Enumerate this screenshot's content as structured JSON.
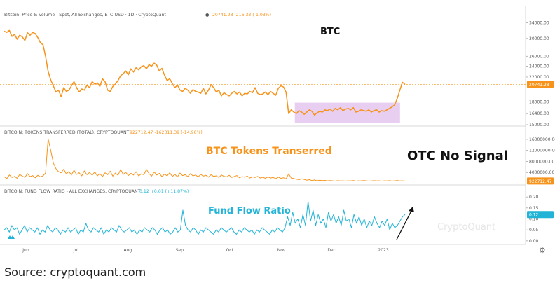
{
  "colors": {
    "btc": "#f7931a",
    "flow": "#22b4d6",
    "box": "#e4c5ee",
    "header_value": "#f7931a",
    "badge_text": "#ffffff"
  },
  "chart_data": [
    {
      "type": "line",
      "header": "Bitcoin: Price & Volume - Spot, All Exchanges, BTC-USD · 1D · CryptoQuant",
      "header_values": "20741.28 -216.33 (-1.03%)",
      "annotation": "BTC",
      "last_value": "20741.28",
      "y_ticks": [
        "34000.00",
        "30000.00",
        "26000.00",
        "24000.00",
        "22000.00",
        "18000.00",
        "16400.00",
        "15000.00"
      ],
      "y_scale": "log",
      "ylim": [
        15000,
        34500
      ],
      "highlight_box": {
        "x_start": "2022-11-09",
        "x_end": "2023-01-11",
        "y_range": [
          15200,
          17900
        ]
      },
      "series": [
        {
          "values": [
            31800,
            31500,
            32000,
            30500,
            31000,
            29800,
            30800,
            30400,
            29500,
            31400,
            30800,
            31500,
            31200,
            30200,
            29000,
            28500,
            26000,
            23000,
            21500,
            20500,
            19500,
            19800,
            18800,
            20200,
            19600,
            19800,
            20500,
            21200,
            20200,
            19500,
            20000,
            19800,
            20600,
            20200,
            21200,
            20800,
            21000,
            20400,
            21700,
            21200,
            19800,
            19600,
            20400,
            20800,
            21400,
            22200,
            22600,
            23100,
            22400,
            23500,
            22900,
            23700,
            23300,
            23900,
            24100,
            23500,
            24300,
            24000,
            24600,
            24200,
            23100,
            23600,
            22300,
            21400,
            21700,
            20900,
            20200,
            20600,
            19800,
            19600,
            20100,
            19800,
            19300,
            19900,
            19600,
            19500,
            19300,
            20100,
            19200,
            19800,
            20700,
            20200,
            19500,
            19800,
            18900,
            19400,
            19100,
            18900,
            19300,
            19600,
            19200,
            19500,
            18900,
            19300,
            19200,
            19600,
            19400,
            20200,
            19300,
            19100,
            19200,
            19500,
            19100,
            19600,
            19300,
            19000,
            20100,
            20500,
            20300,
            19500,
            16400,
            16900,
            16600,
            16400,
            16800,
            16600,
            16300,
            16600,
            16900,
            16700,
            16200,
            16500,
            16700,
            16600,
            16900,
            16800,
            17000,
            16700,
            17100,
            16900,
            17200,
            16800,
            17000,
            17100,
            16900,
            17200,
            16600,
            16700,
            16900,
            16800,
            16700,
            16900,
            16600,
            16800,
            16900,
            16600,
            16800,
            16700,
            16900,
            17100,
            17300,
            17600,
            18500,
            19800,
            21100,
            20741
          ]
        }
      ]
    },
    {
      "type": "line",
      "header": "BITCOIN: TOKENS TRANSFERRED (TOTAL), CRYPTOQUANT",
      "header_values": "922712.47 -162311.39 (-14.96%)",
      "annotation": "BTC Tokens Transerred",
      "last_value": "922712.47",
      "y_ticks": [
        "16000000.00",
        "12000000.00",
        "8000000.00",
        "4000000.00"
      ],
      "ylim": [
        0,
        17000000
      ],
      "series": [
        {
          "values": [
            2500000,
            1800000,
            3100000,
            2200000,
            2600000,
            1900000,
            3300000,
            2700000,
            2200000,
            3600000,
            2500000,
            2900000,
            2100000,
            3000000,
            2400000,
            2800000,
            3800000,
            16200000,
            12000000,
            7500000,
            5400000,
            4300000,
            3900000,
            5200000,
            3500000,
            4400000,
            3100000,
            4800000,
            3300000,
            3900000,
            2800000,
            4600000,
            3200000,
            4000000,
            3000000,
            4200000,
            2800000,
            3600000,
            2500000,
            3900000,
            3200000,
            4500000,
            2700000,
            3800000,
            3000000,
            5100000,
            3300000,
            4100000,
            2900000,
            3700000,
            3100000,
            4300000,
            2800000,
            3500000,
            3200000,
            5100000,
            3600000,
            2700000,
            4200000,
            3100000,
            3700000,
            2500000,
            3400000,
            2800000,
            3900000,
            2600000,
            3300000,
            2400000,
            3800000,
            2900000,
            3200000,
            2500000,
            3600000,
            2800000,
            3100000,
            2400000,
            3300000,
            2700000,
            3000000,
            2300000,
            3200000,
            2600000,
            2800000,
            2200000,
            3100000,
            2600000,
            2400000,
            3000000,
            2200000,
            2600000,
            2900000,
            2100000,
            2500000,
            2300000,
            2700000,
            2000000,
            2400000,
            2200000,
            2600000,
            2000000,
            2300000,
            1900000,
            2400000,
            2000000,
            2200000,
            1800000,
            2300000,
            1900000,
            2100000,
            1700000,
            3500000,
            2000000,
            1800000,
            1600000,
            1400000,
            1700000,
            1500000,
            1200000,
            1400000,
            1100000,
            1300000,
            1000000,
            1200000,
            1050000,
            1150000,
            950000,
            1100000,
            1000000,
            900000,
            1050000,
            950000,
            1000000,
            900000,
            1000000,
            950000,
            1100000,
            900000,
            1000000,
            950000,
            1100000,
            1000000,
            900000,
            950000,
            1050000,
            950000,
            1000000,
            900000,
            1000000,
            950000,
            1050000,
            900000,
            1000000,
            1100000,
            950000,
            1000000,
            922712
          ]
        }
      ]
    },
    {
      "type": "line",
      "header": "BITCOIN: FUND FLOW RATIO - ALL EXCHANGES, CRYPTOQUANT",
      "header_values": "0.12 +0.01 (+11.87%)",
      "annotation": "Fund Flow Ratio",
      "last_value": "0.12",
      "y_ticks": [
        "0.20",
        "0.15",
        "0.10",
        "0.05",
        "0.00"
      ],
      "ylim": [
        -0.01,
        0.21
      ],
      "series": [
        {
          "values": [
            0.05,
            0.06,
            0.04,
            0.07,
            0.05,
            0.06,
            0.03,
            0.05,
            0.07,
            0.04,
            0.06,
            0.05,
            0.04,
            0.06,
            0.03,
            0.05,
            0.04,
            0.07,
            0.05,
            0.04,
            0.06,
            0.05,
            0.03,
            0.05,
            0.04,
            0.06,
            0.04,
            0.05,
            0.06,
            0.03,
            0.05,
            0.04,
            0.08,
            0.05,
            0.04,
            0.06,
            0.05,
            0.04,
            0.06,
            0.03,
            0.05,
            0.04,
            0.06,
            0.05,
            0.04,
            0.07,
            0.05,
            0.04,
            0.05,
            0.06,
            0.04,
            0.05,
            0.03,
            0.05,
            0.04,
            0.06,
            0.05,
            0.04,
            0.06,
            0.05,
            0.03,
            0.05,
            0.06,
            0.04,
            0.05,
            0.03,
            0.04,
            0.06,
            0.04,
            0.05,
            0.14,
            0.07,
            0.05,
            0.04,
            0.06,
            0.05,
            0.03,
            0.05,
            0.04,
            0.06,
            0.05,
            0.04,
            0.03,
            0.05,
            0.04,
            0.06,
            0.05,
            0.04,
            0.05,
            0.06,
            0.04,
            0.03,
            0.05,
            0.04,
            0.06,
            0.05,
            0.04,
            0.05,
            0.03,
            0.05,
            0.04,
            0.06,
            0.05,
            0.04,
            0.03,
            0.05,
            0.04,
            0.06,
            0.05,
            0.04,
            0.06,
            0.11,
            0.07,
            0.13,
            0.08,
            0.1,
            0.06,
            0.12,
            0.07,
            0.18,
            0.09,
            0.14,
            0.07,
            0.12,
            0.08,
            0.1,
            0.06,
            0.13,
            0.09,
            0.12,
            0.08,
            0.11,
            0.07,
            0.14,
            0.09,
            0.1,
            0.06,
            0.12,
            0.08,
            0.11,
            0.07,
            0.1,
            0.06,
            0.09,
            0.07,
            0.11,
            0.08,
            0.06,
            0.09,
            0.07,
            0.1,
            0.05,
            0.08,
            0.06,
            0.07,
            0.09,
            0.11,
            0.12
          ]
        }
      ]
    }
  ],
  "x_axis": {
    "labels": [
      {
        "label": "Jun",
        "date": "2022-06-01"
      },
      {
        "label": "Jul",
        "date": "2022-07-01"
      },
      {
        "label": "Aug",
        "date": "2022-08-01"
      },
      {
        "label": "Sep",
        "date": "2022-09-01"
      },
      {
        "label": "Oct",
        "date": "2022-10-01"
      },
      {
        "label": "Nov",
        "date": "2022-11-01"
      },
      {
        "label": "Dec",
        "date": "2022-12-01"
      },
      {
        "label": "2023",
        "date": "2023-01-01"
      }
    ],
    "x_start": "2022-05-19",
    "x_end": "2023-01-14"
  },
  "overlay_text": "OTC No Signal",
  "watermark": "CryptoQuant",
  "source_text": "Source: cryptoquant.com"
}
